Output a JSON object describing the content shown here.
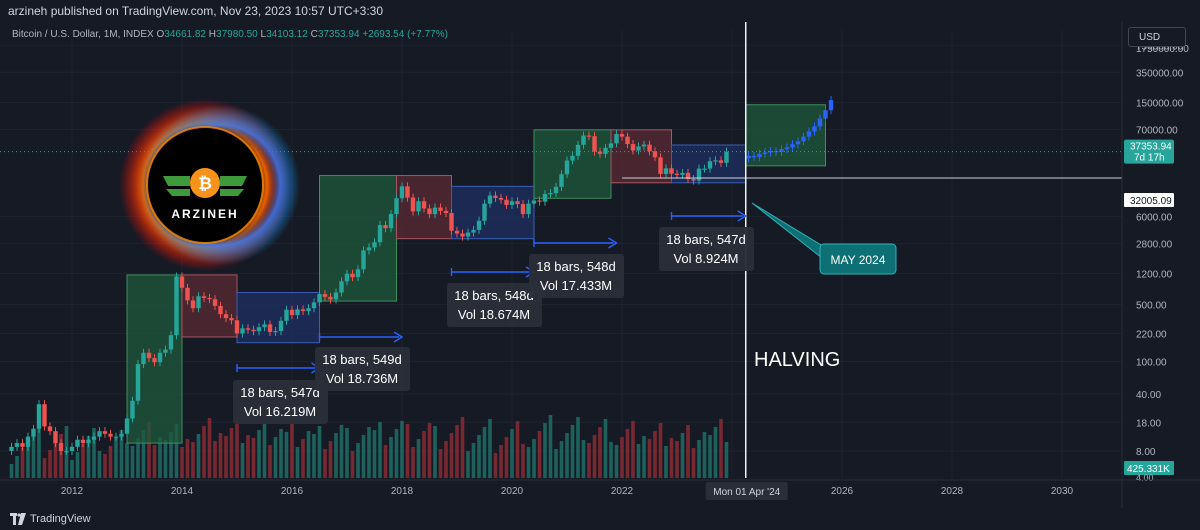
{
  "header": {
    "published": "arzineh published on TradingView.com, Nov 23, 2023 10:57 UTC+3:30"
  },
  "legend": {
    "symbol": "Bitcoin / U.S. Dollar, 1M, INDEX",
    "o_label": "O",
    "o": "34661.82",
    "h_label": "H",
    "h": "37980.50",
    "l_label": "L",
    "l": "34103.12",
    "c_label": "C",
    "c": "37353.94",
    "change": "+2693.54 (+7.77%)"
  },
  "currency_button": "USD",
  "footer": {
    "brand": "TradingView"
  },
  "logo": {
    "text": "ARZINEH"
  },
  "colors": {
    "background": "#161a25",
    "up": "#26a69a",
    "down": "#ef5350",
    "projection": "#2962ff",
    "box_green": "#1e5a3c",
    "box_red": "#5a2a33",
    "box_blue": "#1e2f63",
    "label_teal": "#0e6f74"
  },
  "chart_data": {
    "type": "candlestick",
    "x_ticks": [
      "2012",
      "2014",
      "2016",
      "2018",
      "2020",
      "2022",
      "2024",
      "2026",
      "2028",
      "2030"
    ],
    "y_ticks": [
      "750000.00",
      "350000.00",
      "150000.00",
      "70000.00",
      "37353.94",
      "32005.09",
      "6000.00",
      "2800.00",
      "1200.00",
      "500.00",
      "220.00",
      "100.00",
      "40.00",
      "18.00",
      "8.00"
    ],
    "y_top_tick": "1750000.00",
    "y_scale": "log",
    "y_range": [
      6,
      1800000
    ],
    "current_price": 37353.94,
    "price_badge": {
      "value": "37353.94",
      "countdown": "7d 17h"
    },
    "lower_badge": "32005.09",
    "crosshair_date": "Mon 01 Apr '24",
    "volume_label": "425.331K",
    "volume_bottom_tick": "4.00",
    "annotations": {
      "halving": "HALVING",
      "may_2024": "MAY 2024"
    },
    "range_labels": [
      {
        "bars": "18 bars, 547d",
        "vol": "Vol 16.219M"
      },
      {
        "bars": "18 bars, 549d",
        "vol": "Vol 18.736M"
      },
      {
        "bars": "18 bars, 548d",
        "vol": "Vol 18.674M"
      },
      {
        "bars": "18 bars, 548d",
        "vol": "Vol 17.433M"
      },
      {
        "bars": "18 bars, 547d",
        "vol": "Vol 8.924M"
      }
    ],
    "boxes": [
      {
        "color": "green",
        "x0": 2013.0,
        "x1": 2014.0,
        "y0": 10,
        "y1": 1150
      },
      {
        "color": "red",
        "x0": 2014.0,
        "x1": 2015.0,
        "y0": 200,
        "y1": 1150
      },
      {
        "color": "blue",
        "x0": 2015.0,
        "x1": 2016.5,
        "y0": 170,
        "y1": 700
      },
      {
        "color": "green",
        "x0": 2016.5,
        "x1": 2017.9,
        "y0": 550,
        "y1": 19000
      },
      {
        "color": "red",
        "x0": 2017.9,
        "x1": 2018.9,
        "y0": 3200,
        "y1": 19000
      },
      {
        "color": "blue",
        "x0": 2018.9,
        "x1": 2020.4,
        "y0": 3200,
        "y1": 14000
      },
      {
        "color": "green",
        "x0": 2020.4,
        "x1": 2021.8,
        "y0": 10000,
        "y1": 69000
      },
      {
        "color": "red",
        "x0": 2021.8,
        "x1": 2022.9,
        "y0": 15500,
        "y1": 69000
      },
      {
        "color": "blue",
        "x0": 2022.9,
        "x1": 2024.25,
        "y0": 15500,
        "y1": 45000
      },
      {
        "color": "green",
        "x0": 2024.25,
        "x1": 2025.7,
        "y0": 25000,
        "y1": 140000
      }
    ],
    "candles": [
      {
        "t": 2010.9,
        "o": 8,
        "c": 9
      },
      {
        "t": 2011.0,
        "o": 9,
        "c": 10
      },
      {
        "t": 2011.1,
        "o": 10,
        "c": 9
      },
      {
        "t": 2011.2,
        "o": 9,
        "c": 12
      },
      {
        "t": 2011.3,
        "o": 12,
        "c": 15
      },
      {
        "t": 2011.4,
        "o": 15,
        "c": 30
      },
      {
        "t": 2011.5,
        "o": 30,
        "c": 16
      },
      {
        "t": 2011.6,
        "o": 16,
        "c": 14
      },
      {
        "t": 2011.7,
        "o": 14,
        "c": 10
      },
      {
        "t": 2011.8,
        "o": 10,
        "c": 8
      },
      {
        "t": 2011.9,
        "o": 8,
        "c": 8
      },
      {
        "t": 2012.0,
        "o": 8,
        "c": 9
      },
      {
        "t": 2012.1,
        "o": 9,
        "c": 11
      },
      {
        "t": 2012.2,
        "o": 11,
        "c": 10
      },
      {
        "t": 2012.3,
        "o": 10,
        "c": 11
      },
      {
        "t": 2012.4,
        "o": 11,
        "c": 12
      },
      {
        "t": 2012.5,
        "o": 12,
        "c": 14
      },
      {
        "t": 2012.6,
        "o": 14,
        "c": 13
      },
      {
        "t": 2012.7,
        "o": 13,
        "c": 12
      },
      {
        "t": 2012.8,
        "o": 12,
        "c": 12
      },
      {
        "t": 2012.9,
        "o": 12,
        "c": 13
      },
      {
        "t": 2013.0,
        "o": 13,
        "c": 20
      },
      {
        "t": 2013.1,
        "o": 20,
        "c": 33
      },
      {
        "t": 2013.2,
        "o": 33,
        "c": 93
      },
      {
        "t": 2013.3,
        "o": 93,
        "c": 128
      },
      {
        "t": 2013.4,
        "o": 128,
        "c": 110
      },
      {
        "t": 2013.5,
        "o": 110,
        "c": 98
      },
      {
        "t": 2013.6,
        "o": 98,
        "c": 128
      },
      {
        "t": 2013.7,
        "o": 128,
        "c": 140
      },
      {
        "t": 2013.8,
        "o": 140,
        "c": 210
      },
      {
        "t": 2013.9,
        "o": 210,
        "c": 1100
      },
      {
        "t": 2014.0,
        "o": 1100,
        "c": 800
      },
      {
        "t": 2014.1,
        "o": 800,
        "c": 560
      },
      {
        "t": 2014.2,
        "o": 560,
        "c": 450
      },
      {
        "t": 2014.3,
        "o": 450,
        "c": 630
      },
      {
        "t": 2014.4,
        "o": 630,
        "c": 600
      },
      {
        "t": 2014.5,
        "o": 600,
        "c": 580
      },
      {
        "t": 2014.6,
        "o": 580,
        "c": 480
      },
      {
        "t": 2014.7,
        "o": 480,
        "c": 380
      },
      {
        "t": 2014.8,
        "o": 380,
        "c": 340
      },
      {
        "t": 2014.9,
        "o": 340,
        "c": 320
      },
      {
        "t": 2015.0,
        "o": 320,
        "c": 220
      },
      {
        "t": 2015.1,
        "o": 220,
        "c": 255
      },
      {
        "t": 2015.2,
        "o": 255,
        "c": 245
      },
      {
        "t": 2015.3,
        "o": 245,
        "c": 235
      },
      {
        "t": 2015.4,
        "o": 235,
        "c": 263
      },
      {
        "t": 2015.5,
        "o": 263,
        "c": 285
      },
      {
        "t": 2015.6,
        "o": 285,
        "c": 230
      },
      {
        "t": 2015.7,
        "o": 230,
        "c": 236
      },
      {
        "t": 2015.8,
        "o": 236,
        "c": 315
      },
      {
        "t": 2015.9,
        "o": 315,
        "c": 430
      },
      {
        "t": 2016.0,
        "o": 430,
        "c": 370
      },
      {
        "t": 2016.1,
        "o": 370,
        "c": 435
      },
      {
        "t": 2016.2,
        "o": 435,
        "c": 415
      },
      {
        "t": 2016.3,
        "o": 415,
        "c": 450
      },
      {
        "t": 2016.4,
        "o": 450,
        "c": 530
      },
      {
        "t": 2016.5,
        "o": 530,
        "c": 670
      },
      {
        "t": 2016.6,
        "o": 670,
        "c": 620
      },
      {
        "t": 2016.7,
        "o": 620,
        "c": 575
      },
      {
        "t": 2016.8,
        "o": 575,
        "c": 700
      },
      {
        "t": 2016.9,
        "o": 700,
        "c": 960
      },
      {
        "t": 2017.0,
        "o": 960,
        "c": 1190
      },
      {
        "t": 2017.1,
        "o": 1190,
        "c": 1080
      },
      {
        "t": 2017.2,
        "o": 1080,
        "c": 1350
      },
      {
        "t": 2017.3,
        "o": 1350,
        "c": 2300
      },
      {
        "t": 2017.4,
        "o": 2300,
        "c": 2500
      },
      {
        "t": 2017.5,
        "o": 2500,
        "c": 2900
      },
      {
        "t": 2017.6,
        "o": 2900,
        "c": 4700
      },
      {
        "t": 2017.7,
        "o": 4700,
        "c": 4300
      },
      {
        "t": 2017.8,
        "o": 4300,
        "c": 6400
      },
      {
        "t": 2017.9,
        "o": 6400,
        "c": 10000
      },
      {
        "t": 2018.0,
        "o": 10000,
        "c": 14000
      },
      {
        "t": 2018.1,
        "o": 14000,
        "c": 10200
      },
      {
        "t": 2018.2,
        "o": 10200,
        "c": 6900
      },
      {
        "t": 2018.3,
        "o": 6900,
        "c": 9200
      },
      {
        "t": 2018.4,
        "o": 9200,
        "c": 7500
      },
      {
        "t": 2018.5,
        "o": 7500,
        "c": 6400
      },
      {
        "t": 2018.6,
        "o": 6400,
        "c": 7700
      },
      {
        "t": 2018.7,
        "o": 7700,
        "c": 7000
      },
      {
        "t": 2018.8,
        "o": 7000,
        "c": 6600
      },
      {
        "t": 2018.9,
        "o": 6600,
        "c": 4000
      },
      {
        "t": 2019.0,
        "o": 4000,
        "c": 3700
      },
      {
        "t": 2019.1,
        "o": 3700,
        "c": 3400
      },
      {
        "t": 2019.2,
        "o": 3400,
        "c": 3800
      },
      {
        "t": 2019.3,
        "o": 3800,
        "c": 4100
      },
      {
        "t": 2019.4,
        "o": 4100,
        "c": 5300
      },
      {
        "t": 2019.5,
        "o": 5300,
        "c": 8600
      },
      {
        "t": 2019.6,
        "o": 8600,
        "c": 10800
      },
      {
        "t": 2019.7,
        "o": 10800,
        "c": 10100
      },
      {
        "t": 2019.8,
        "o": 10100,
        "c": 9600
      },
      {
        "t": 2019.9,
        "o": 9600,
        "c": 8300
      },
      {
        "t": 2020.0,
        "o": 8300,
        "c": 9200
      },
      {
        "t": 2020.1,
        "o": 9200,
        "c": 8500
      },
      {
        "t": 2020.2,
        "o": 8500,
        "c": 6400
      },
      {
        "t": 2020.3,
        "o": 6400,
        "c": 8600
      },
      {
        "t": 2020.4,
        "o": 8600,
        "c": 9400
      },
      {
        "t": 2020.5,
        "o": 9400,
        "c": 9100
      },
      {
        "t": 2020.6,
        "o": 9100,
        "c": 11300
      },
      {
        "t": 2020.7,
        "o": 11300,
        "c": 11600
      },
      {
        "t": 2020.8,
        "o": 11600,
        "c": 13800
      },
      {
        "t": 2020.9,
        "o": 13800,
        "c": 19700
      },
      {
        "t": 2021.0,
        "o": 19700,
        "c": 29000
      },
      {
        "t": 2021.1,
        "o": 29000,
        "c": 33100
      },
      {
        "t": 2021.2,
        "o": 33100,
        "c": 45200
      },
      {
        "t": 2021.3,
        "o": 45200,
        "c": 58800
      },
      {
        "t": 2021.4,
        "o": 58800,
        "c": 57700
      },
      {
        "t": 2021.5,
        "o": 57700,
        "c": 37300
      },
      {
        "t": 2021.6,
        "o": 37300,
        "c": 35000
      },
      {
        "t": 2021.7,
        "o": 35000,
        "c": 41500
      },
      {
        "t": 2021.8,
        "o": 41500,
        "c": 47100
      },
      {
        "t": 2021.9,
        "o": 47100,
        "c": 61300
      },
      {
        "t": 2022.0,
        "o": 61300,
        "c": 57000
      },
      {
        "t": 2022.1,
        "o": 57000,
        "c": 46200
      },
      {
        "t": 2022.2,
        "o": 46200,
        "c": 38500
      },
      {
        "t": 2022.3,
        "o": 38500,
        "c": 43200
      },
      {
        "t": 2022.4,
        "o": 43200,
        "c": 45500
      },
      {
        "t": 2022.5,
        "o": 45500,
        "c": 37700
      },
      {
        "t": 2022.6,
        "o": 37700,
        "c": 31800
      },
      {
        "t": 2022.7,
        "o": 31800,
        "c": 19900
      },
      {
        "t": 2022.8,
        "o": 19900,
        "c": 23300
      },
      {
        "t": 2022.9,
        "o": 23300,
        "c": 20000
      },
      {
        "t": 2023.0,
        "o": 20000,
        "c": 19400
      },
      {
        "t": 2023.1,
        "o": 19400,
        "c": 20500
      },
      {
        "t": 2023.2,
        "o": 20500,
        "c": 17200
      },
      {
        "t": 2023.3,
        "o": 17200,
        "c": 16500
      },
      {
        "t": 2023.4,
        "o": 16500,
        "c": 23100
      },
      {
        "t": 2023.5,
        "o": 23100,
        "c": 23100
      },
      {
        "t": 2023.6,
        "o": 23100,
        "c": 28500
      },
      {
        "t": 2023.7,
        "o": 28500,
        "c": 29200
      },
      {
        "t": 2023.8,
        "o": 29200,
        "c": 27200
      },
      {
        "t": 2023.9,
        "o": 27200,
        "c": 37300
      }
    ],
    "projection": [
      {
        "t": 2024.3,
        "o": 31000,
        "c": 33000
      },
      {
        "t": 2024.4,
        "o": 33000,
        "c": 32000
      },
      {
        "t": 2024.5,
        "o": 32000,
        "c": 35000
      },
      {
        "t": 2024.6,
        "o": 35000,
        "c": 36500
      },
      {
        "t": 2024.7,
        "o": 36500,
        "c": 38000
      },
      {
        "t": 2024.8,
        "o": 38000,
        "c": 37000
      },
      {
        "t": 2024.9,
        "o": 37000,
        "c": 40000
      },
      {
        "t": 2025.0,
        "o": 40000,
        "c": 42000
      },
      {
        "t": 2025.1,
        "o": 42000,
        "c": 46000
      },
      {
        "t": 2025.2,
        "o": 46000,
        "c": 50000
      },
      {
        "t": 2025.3,
        "o": 50000,
        "c": 57000
      },
      {
        "t": 2025.4,
        "o": 57000,
        "c": 66000
      },
      {
        "t": 2025.5,
        "o": 66000,
        "c": 76000
      },
      {
        "t": 2025.6,
        "o": 76000,
        "c": 95000
      },
      {
        "t": 2025.7,
        "o": 95000,
        "c": 120000
      },
      {
        "t": 2025.8,
        "o": 120000,
        "c": 160000
      }
    ]
  }
}
